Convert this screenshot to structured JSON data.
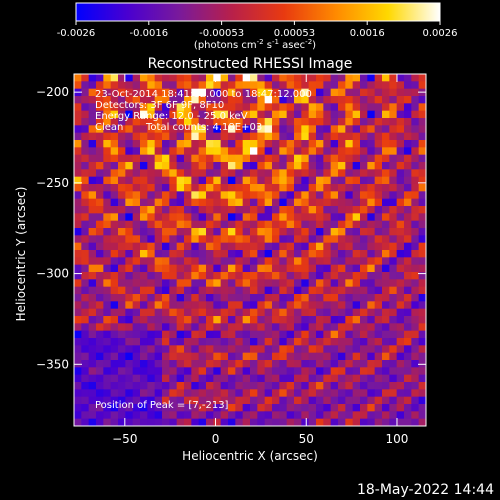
{
  "chart_data": {
    "type": "heatmap",
    "title": "Reconstructed RHESSI Image",
    "xlabel": "Heliocentric X (arcsec)",
    "ylabel": "Heliocentric Y (arcsec)",
    "xlim": [
      -78,
      116
    ],
    "ylim": [
      -384,
      -190
    ],
    "x_ticks": [
      -50,
      0,
      50,
      100
    ],
    "y_ticks": [
      -200,
      -250,
      -300,
      -350
    ],
    "colorbar": {
      "colormap": "RHESSI red-temperature",
      "min": -0.0026,
      "max": 0.0026,
      "ticks": [
        "-0.0026",
        "-0.0016",
        "-0.00053",
        "0.00053",
        "0.0016",
        "0.0026"
      ],
      "stops": [
        "#0000ff",
        "#4a00d0",
        "#7a1a9a",
        "#b8204a",
        "#e83a10",
        "#ff8a00",
        "#ffd800",
        "#ffffff"
      ],
      "unit_text": "(photons cm",
      "unit_exp1": "-2",
      "unit_mid": " s",
      "unit_exp2": "-1",
      "unit_end": " asec",
      "unit_exp3": "-2",
      "unit_close": ")"
    },
    "annotations": {
      "time_range": "23-Oct-2014 18:41:12.000 to 18:47:12.000",
      "detectors": "Detectors: 3F 6F 9F, 8F10",
      "energy_range": "Energy Range: 12.0 - 25.0 keV",
      "method": "Clean",
      "counts": "Total counts: 4.18E+03",
      "peak": "Position of Peak = [7,-213]"
    }
  },
  "footer": {
    "timestamp": "18-May-2022 14:44"
  }
}
